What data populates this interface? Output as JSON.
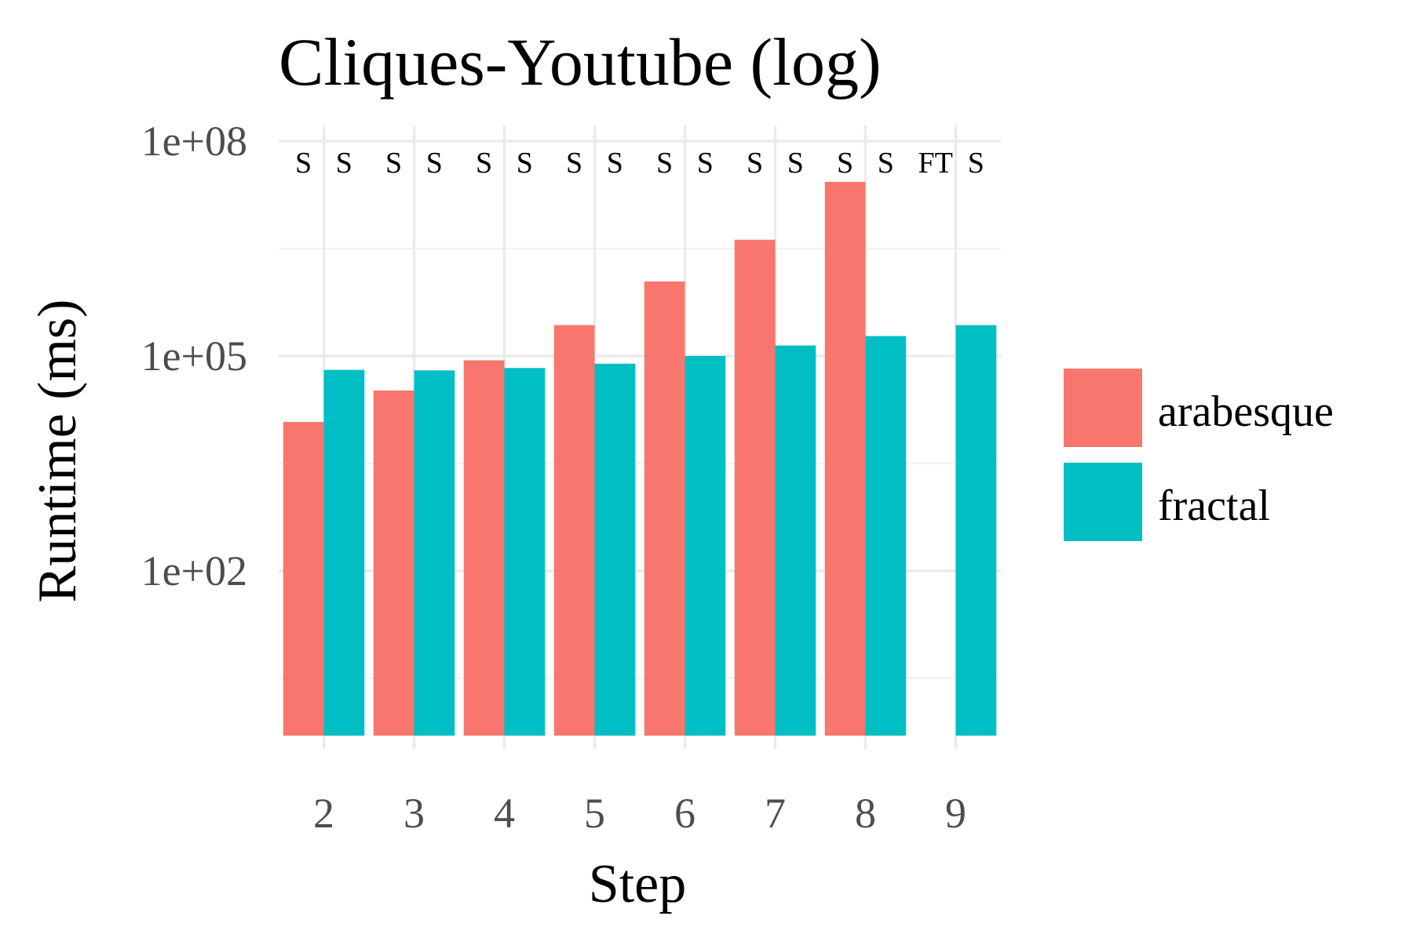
{
  "chart_data": {
    "type": "bar",
    "title": "Cliques-Youtube (log)",
    "xlabel": "Step",
    "ylabel": "Runtime (ms)",
    "y_scale": "log10",
    "ylim": [
      0.5,
      100000000
    ],
    "y_ticks": [
      {
        "value": 100,
        "label": "1e+02"
      },
      {
        "value": 100000,
        "label": "1e+05"
      },
      {
        "value": 100000000,
        "label": "1e+08"
      }
    ],
    "categories": [
      "2",
      "3",
      "4",
      "5",
      "6",
      "7",
      "8",
      "9"
    ],
    "series": [
      {
        "name": "arabesque",
        "color": "#F8766D",
        "values": [
          12000,
          33000,
          87000,
          270000,
          1100000,
          4200000,
          27000000,
          null
        ],
        "status": [
          "S",
          "S",
          "S",
          "S",
          "S",
          "S",
          "S",
          "FT"
        ]
      },
      {
        "name": "fractal",
        "color": "#00BFC4",
        "values": [
          64000,
          63000,
          68000,
          78000,
          100000,
          140000,
          190000,
          270000
        ],
        "status": [
          "S",
          "S",
          "S",
          "S",
          "S",
          "S",
          "S",
          "S"
        ]
      }
    ],
    "grid": true,
    "legend": "right"
  }
}
